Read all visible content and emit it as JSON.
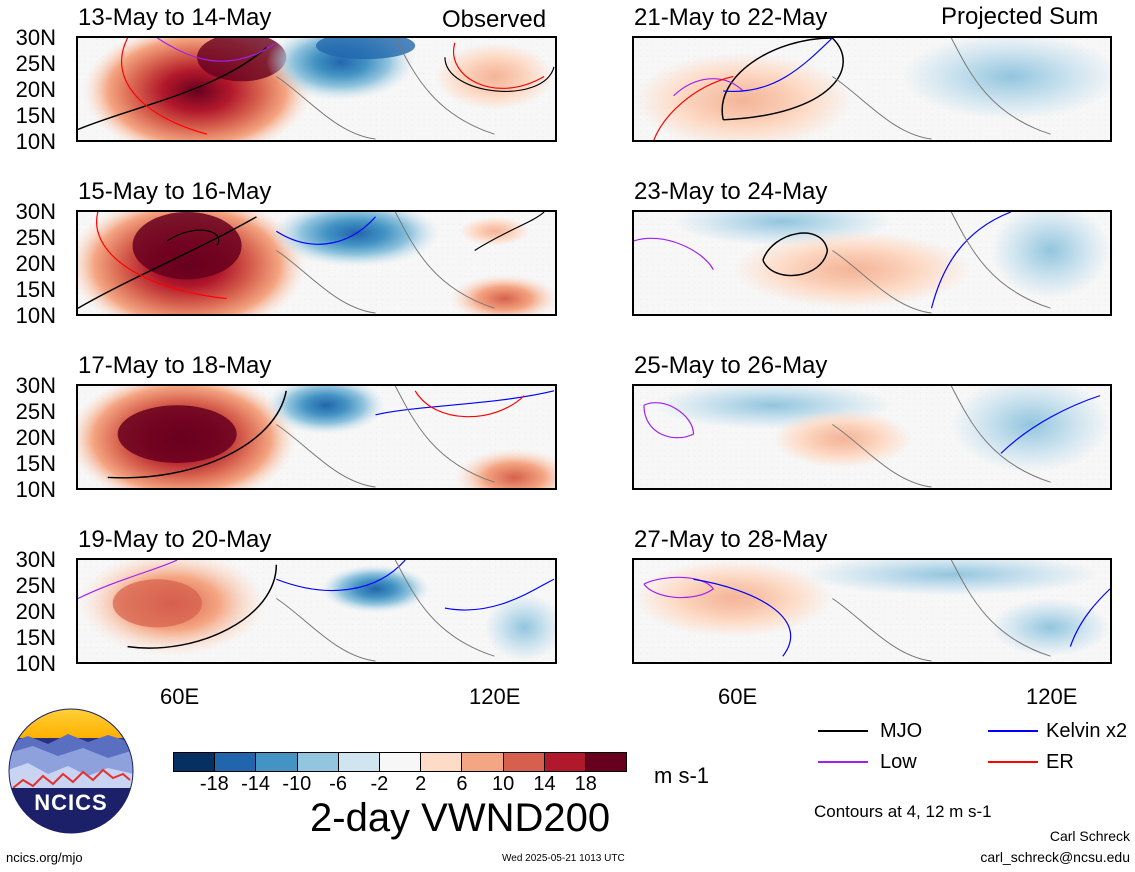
{
  "header": {
    "observed_label": "Observed",
    "projected_label": "Projected Sum"
  },
  "panels": {
    "left": [
      {
        "title": "13-May to 14-May",
        "anomaly": "strong-positive"
      },
      {
        "title": "15-May to 16-May",
        "anomaly": "strong-positive"
      },
      {
        "title": "17-May to 18-May",
        "anomaly": "strong-positive"
      },
      {
        "title": "19-May to 20-May",
        "anomaly": "moderate-positive"
      }
    ],
    "right": [
      {
        "title": "21-May to 22-May",
        "anomaly": "weak"
      },
      {
        "title": "23-May to 24-May",
        "anomaly": "weak"
      },
      {
        "title": "25-May to 26-May",
        "anomaly": "weak"
      },
      {
        "title": "27-May to 28-May",
        "anomaly": "weak"
      }
    ]
  },
  "axes": {
    "lat_ticks": [
      "30N",
      "25N",
      "20N",
      "15N",
      "10N"
    ],
    "lon_ticks": [
      "60E",
      "120E"
    ]
  },
  "colorbar": {
    "ticks": [
      "-18",
      "-14",
      "-10",
      "-6",
      "-2",
      "2",
      "6",
      "10",
      "14",
      "18"
    ],
    "colors": [
      "#053061",
      "#2166ac",
      "#4393c3",
      "#92c5de",
      "#d1e5f0",
      "#f7f7f7",
      "#fddbc7",
      "#f4a582",
      "#d6604d",
      "#b2182b",
      "#67001f"
    ],
    "units": "m s-1"
  },
  "title": "2-day VWND200",
  "legend": {
    "items": [
      {
        "label": "MJO",
        "color": "#000000"
      },
      {
        "label": "Kelvin x2",
        "color": "#0000ff"
      },
      {
        "label": "Low",
        "color": "#a020f0"
      },
      {
        "label": "ER",
        "color": "#ff0000"
      }
    ],
    "contours_note": "Contours at 4, 12 m s-1"
  },
  "logo": {
    "text": "NCICS"
  },
  "footer": {
    "url": "ncics.org/mjo",
    "timestamp": "Wed 2025-05-21 1013 UTC",
    "author": "Carl Schreck",
    "email": "carl_schreck@ncsu.edu"
  }
}
